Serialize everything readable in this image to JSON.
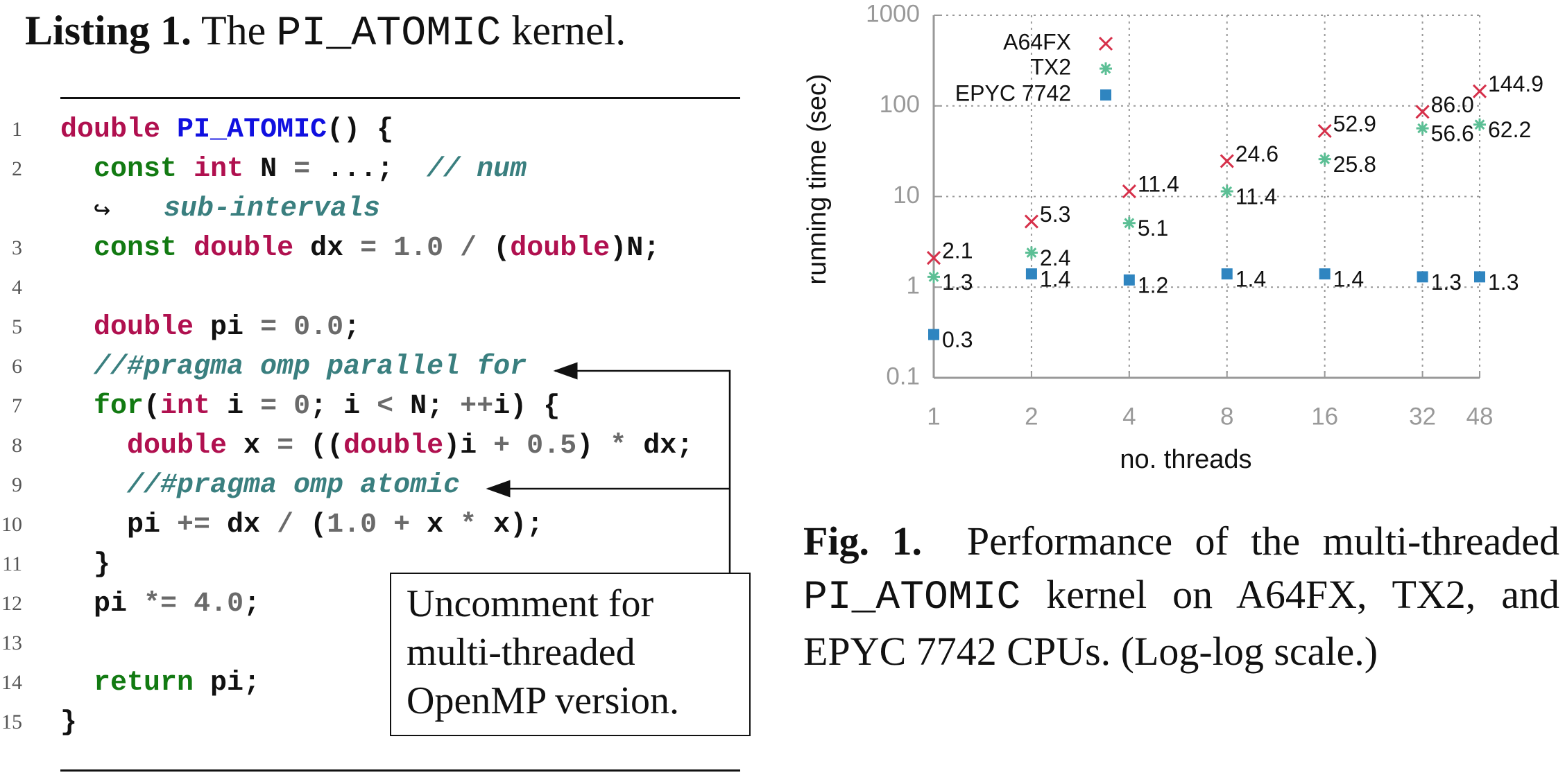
{
  "listing": {
    "label": "Listing 1.",
    "text_before": "The",
    "code_name": "PI_ATOMIC",
    "text_after": "kernel.",
    "lines": [
      {
        "number": 1,
        "code": "double PI_ATOMIC() {"
      },
      {
        "number": 2,
        "code": "  const int N = ...;  // num",
        "continuation": "sub-intervals"
      },
      {
        "number": 3,
        "code": "  const double dx = 1.0 / (double)N;"
      },
      {
        "number": 4
      },
      {
        "number": 5,
        "code": "  double pi = 0.0;"
      },
      {
        "number": 6,
        "code": "  //#pragma omp parallel for"
      },
      {
        "number": 7,
        "code": "  for(int i = 0; i < N; ++i) {"
      },
      {
        "number": 8,
        "code": "    double x = ((double)i + 0.5) * dx;"
      },
      {
        "number": 9,
        "code": "    //#pragma omp atomic"
      },
      {
        "number": 10,
        "code": "    pi += dx / (1.0 + x * x);"
      },
      {
        "number": 11,
        "code": "  }"
      },
      {
        "number": 12,
        "code": "  pi *= 4.0;"
      },
      {
        "number": 13
      },
      {
        "number": 14,
        "code": "  return pi;"
      },
      {
        "number": 15,
        "code": "}"
      }
    ],
    "annotation": [
      "Uncomment for",
      "multi-threaded",
      "OpenMP version."
    ]
  },
  "chart_data": {
    "type": "scatter",
    "xlabel": "no. threads",
    "ylabel": "running time (sec)",
    "x": [
      1,
      2,
      4,
      8,
      16,
      32,
      48
    ],
    "xlim": [
      1,
      48
    ],
    "xticks": [
      1,
      2,
      4,
      8,
      16,
      32,
      48
    ],
    "xscale": "log",
    "ylim": [
      0.1,
      1000
    ],
    "yticks": [
      0.1,
      1,
      10,
      100,
      1000
    ],
    "yscale": "log",
    "grid": true,
    "legend": "upper left",
    "series": [
      {
        "name": "A64FX",
        "color": "#d6304a",
        "marker": "cross",
        "values": [
          2.1,
          5.3,
          11.4,
          24.6,
          52.9,
          86.0,
          144.9
        ],
        "value_labels": [
          "2.1",
          "5.3",
          "11.4",
          "24.6",
          "52.9",
          "86.0",
          "144.9"
        ]
      },
      {
        "name": "TX2",
        "color": "#5cbf95",
        "marker": "star",
        "values": [
          1.3,
          2.4,
          5.1,
          11.4,
          25.8,
          56.6,
          62.2
        ]
      },
      {
        "name": "EPYC 7742",
        "color": "#2f85c0",
        "marker": "square",
        "values": [
          0.3,
          1.4,
          1.2,
          1.4,
          1.4,
          1.3,
          1.3
        ]
      }
    ]
  },
  "caption": {
    "label": "Fig. 1.",
    "text_before": "Performance of the multi-threaded",
    "code_name": "PI_ATOMIC",
    "text_after": "kernel on A64FX, TX2, and EPYC 7742 CPUs. (Log-log scale.)"
  }
}
